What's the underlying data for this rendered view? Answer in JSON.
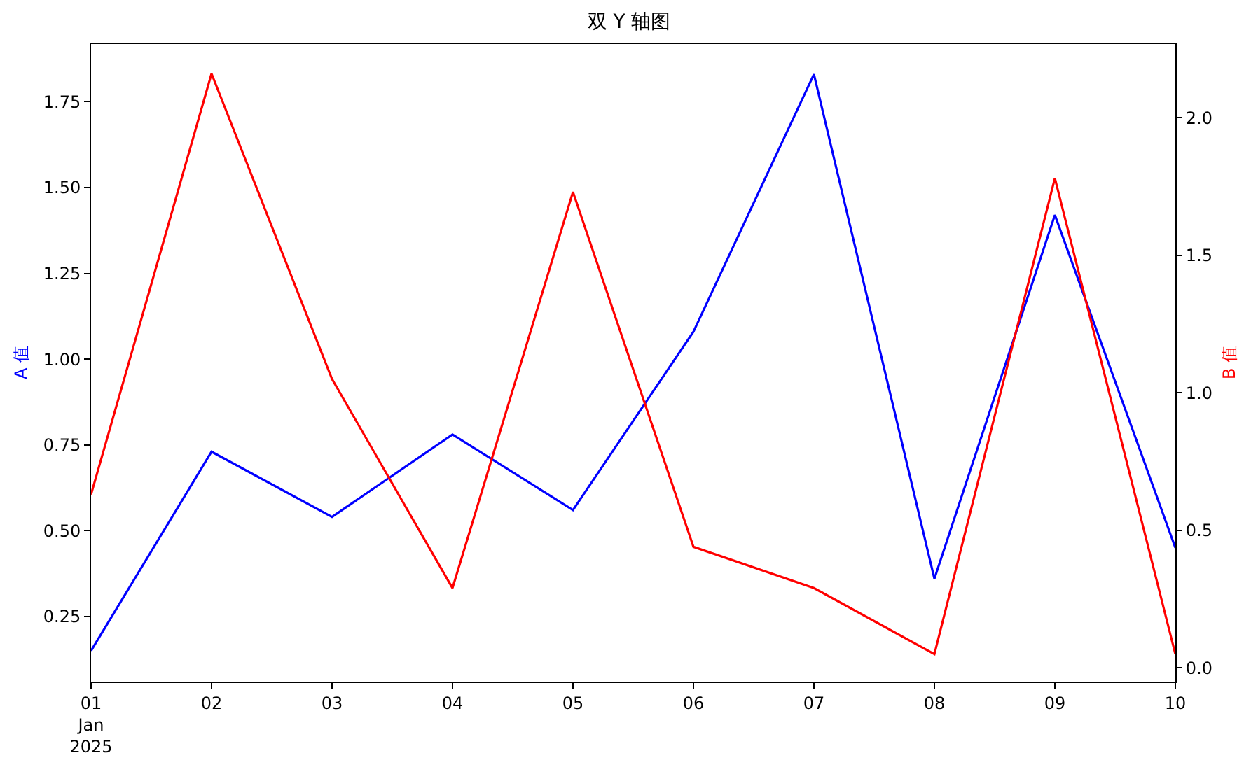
{
  "chart_data": {
    "type": "line",
    "title": "双 Y 轴图",
    "ylabel": "A 值",
    "y2label": "B 值",
    "x": [
      "2025-01-01",
      "2025-01-02",
      "2025-01-03",
      "2025-01-04",
      "2025-01-05",
      "2025-01-06",
      "2025-01-07",
      "2025-01-08",
      "2025-01-09",
      "2025-01-10"
    ],
    "series": [
      {
        "color": "#0000ff",
        "values": [
          0.15,
          0.73,
          0.54,
          0.78,
          0.56,
          1.08,
          1.83,
          0.36,
          1.42,
          0.45
        ]
      },
      {
        "color": "#ff0000",
        "axis": "y2",
        "values": [
          0.63,
          2.16,
          1.05,
          0.29,
          1.73,
          0.44,
          0.29,
          0.05,
          1.78,
          0.05
        ]
      }
    ],
    "xlim": [
      "2025-01-01",
      "2025-01-10"
    ],
    "xticks": [
      {
        "value": "2025-01-01",
        "label": "01\nJan\n2025"
      },
      {
        "value": "2025-01-02",
        "label": "02"
      },
      {
        "value": "2025-01-03",
        "label": "03"
      },
      {
        "value": "2025-01-04",
        "label": "04"
      },
      {
        "value": "2025-01-05",
        "label": "05"
      },
      {
        "value": "2025-01-06",
        "label": "06"
      },
      {
        "value": "2025-01-07",
        "label": "07"
      },
      {
        "value": "2025-01-08",
        "label": "08"
      },
      {
        "value": "2025-01-09",
        "label": "09"
      },
      {
        "value": "2025-01-10",
        "label": "10"
      }
    ],
    "ylim": [
      0.06,
      1.92
    ],
    "yticks": [
      {
        "value": 0.25,
        "label": "0.25"
      },
      {
        "value": 0.5,
        "label": "0.50"
      },
      {
        "value": 0.75,
        "label": "0.75"
      },
      {
        "value": 1.0,
        "label": "1.00"
      },
      {
        "value": 1.25,
        "label": "1.25"
      },
      {
        "value": 1.5,
        "label": "1.50"
      },
      {
        "value": 1.75,
        "label": "1.75"
      }
    ],
    "y2lim": [
      -0.05,
      2.27
    ],
    "y2ticks": [
      {
        "value": 0,
        "label": "0.0"
      },
      {
        "value": 0.5,
        "label": "0.5"
      },
      {
        "value": 1.0,
        "label": "1.0"
      },
      {
        "value": 1.5,
        "label": "1.5"
      },
      {
        "value": 2.0,
        "label": "2.0"
      }
    ],
    "line_style": "solid",
    "marker": "none"
  }
}
